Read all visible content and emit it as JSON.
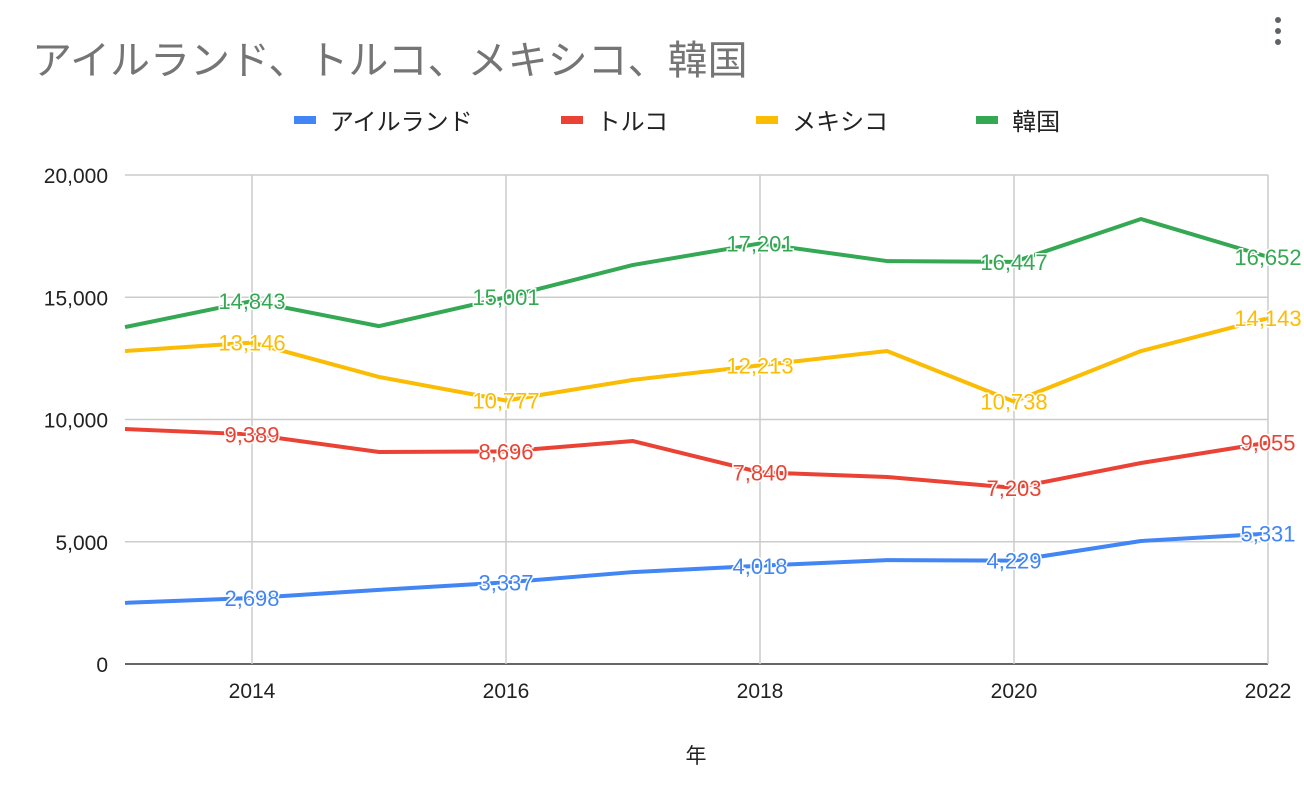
{
  "chart_data": {
    "type": "line",
    "title": "アイルランド、トルコ、メキシコ、韓国",
    "xlabel": "年",
    "ylabel": "",
    "x": [
      2013,
      2014,
      2015,
      2016,
      2017,
      2018,
      2019,
      2020,
      2021,
      2022
    ],
    "xlim": [
      2013,
      2022
    ],
    "ylim": [
      0,
      20000
    ],
    "x_ticks": [
      "2014",
      "2016",
      "2018",
      "2020",
      "2022"
    ],
    "y_ticks": [
      "0",
      "5,000",
      "10,000",
      "15,000",
      "20,000"
    ],
    "grid": true,
    "legend_position": "top",
    "series": [
      {
        "name": "アイルランド",
        "color": "#4285f4",
        "values": [
          2500,
          2698,
          3030,
          3337,
          3760,
          4018,
          4250,
          4229,
          5030,
          5331
        ]
      },
      {
        "name": "トルコ",
        "color": "#ea4335",
        "values": [
          9610,
          9389,
          8670,
          8696,
          9120,
          7840,
          7650,
          7203,
          8220,
          9055
        ]
      },
      {
        "name": "メキシコ",
        "color": "#fbbc04",
        "values": [
          12800,
          13146,
          11740,
          10777,
          11620,
          12213,
          12800,
          10738,
          12800,
          14143
        ]
      },
      {
        "name": "韓国",
        "color": "#34a853",
        "values": [
          13780,
          14843,
          13820,
          15001,
          16320,
          17201,
          16480,
          16447,
          18200,
          16652
        ]
      }
    ],
    "data_labels": [
      {
        "series": 0,
        "labels": {
          "2014": "2,698",
          "2016": "3,337",
          "2018": "4,018",
          "2020": "4,229",
          "2022": "5,331"
        }
      },
      {
        "series": 1,
        "labels": {
          "2014": "9,389",
          "2016": "8,696",
          "2018": "7,840",
          "2020": "7,203",
          "2022": "9,055"
        }
      },
      {
        "series": 2,
        "labels": {
          "2014": "13,146",
          "2016": "10,777",
          "2018": "12,213",
          "2020": "10,738",
          "2022": "14,143"
        }
      },
      {
        "series": 3,
        "labels": {
          "2014": "14,843",
          "2016": "15,001",
          "2018": "17,201",
          "2020": "16,447",
          "2022": "16,652"
        }
      }
    ]
  }
}
